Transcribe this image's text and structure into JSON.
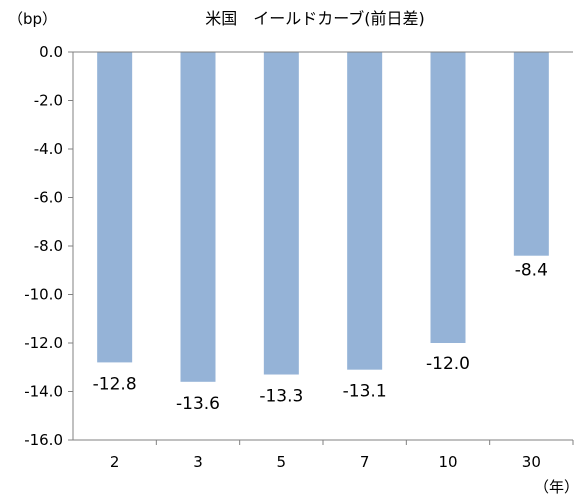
{
  "chart_data": {
    "type": "bar",
    "title": "米国　イールドカーブ(前日差)",
    "y_unit_label": "（bp）",
    "x_unit_label": "（年）",
    "categories": [
      "2",
      "3",
      "5",
      "7",
      "10",
      "30"
    ],
    "values": [
      -12.8,
      -13.6,
      -13.3,
      -13.1,
      -12.0,
      -8.4
    ],
    "data_labels": [
      "-12.8",
      "-13.6",
      "-13.3",
      "-13.1",
      "-12.0",
      "-8.4"
    ],
    "y_ticks": [
      "0.0",
      "-2.0",
      "-4.0",
      "-6.0",
      "-8.0",
      "-10.0",
      "-12.0",
      "-14.0",
      "-16.0"
    ],
    "ylim": [
      -16,
      0
    ],
    "grid": false,
    "legend": "none",
    "bar_color": "#95b3d7",
    "axis_color": "#808080"
  }
}
